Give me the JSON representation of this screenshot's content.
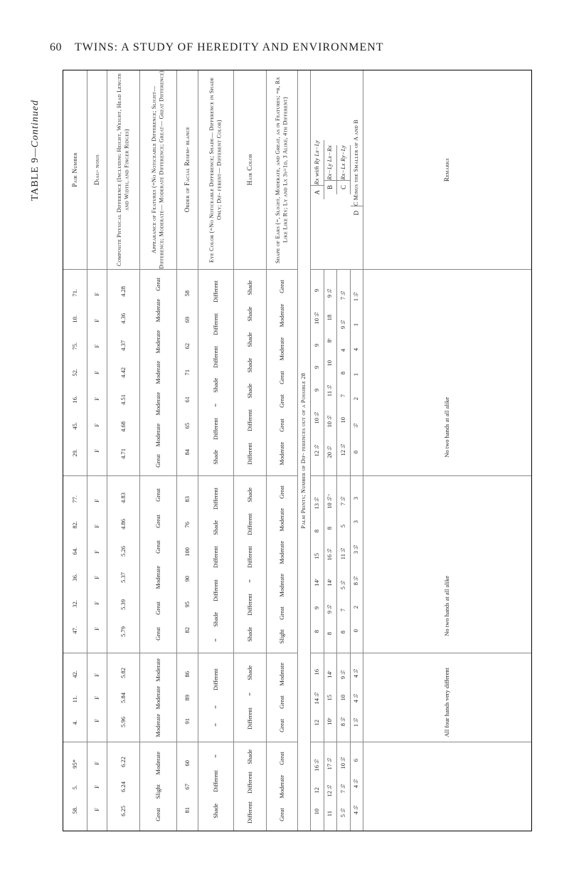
{
  "page_number": "60",
  "page_title": "TWINS: A STUDY OF HEREDITY AND ENVIRONMENT",
  "table_label_1": "TABLE 9",
  "table_label_2": "—Continued",
  "columns": {
    "remarks": {
      "header": "Remarks",
      "rows": {
        "g1": [
          "",
          "",
          "",
          "",
          "",
          "",
          "No two hands at all alike"
        ],
        "g2": [
          "",
          "",
          "",
          "",
          "",
          "No two hands at all alike"
        ],
        "g3": [
          "",
          "",
          "All four hands very different"
        ],
        "g4": [
          "",
          "",
          ""
        ]
      }
    },
    "palm": {
      "header_main": "Palm Prints; Number of Dif-\nferences out of a Possible 28",
      "sub_headers": {
        "D": {
          "label": "D",
          "formula": "C Minus the Smaller of A and B"
        },
        "C": {
          "label": "C",
          "formula": "Rx−Lx\nRy−Ly"
        },
        "B": {
          "label": "B",
          "formula": "Rx−Ly\nLx−Rx"
        },
        "A": {
          "label": "A",
          "formula": "Rx with Ry\nLx−Ly"
        }
      },
      "A": {
        "g1": [
          "9",
          "10½",
          "9",
          "9",
          "9",
          "10½",
          "12½"
        ],
        "g2": [
          "13½",
          "8",
          "15",
          "14ᶜ",
          "9",
          "8"
        ],
        "g3": [
          "16",
          "14½",
          "12"
        ],
        "g4": [
          "16½",
          "12",
          "10"
        ]
      },
      "B": {
        "g1": [
          "9½",
          "18",
          "8ᶜ",
          "10",
          "11½",
          "10½",
          "20½"
        ],
        "g2": [
          "10½ᶜ",
          "8",
          "16½",
          "14ᶜ",
          "9½",
          "8"
        ],
        "g3": [
          "14ᶜ",
          "15",
          "10ᶜ"
        ],
        "g4": [
          "17½",
          "12½",
          "11"
        ]
      },
      "Cc": {
        "g1": [
          "7½",
          "9½",
          "4",
          "8",
          "7",
          "10",
          "12½"
        ],
        "g2": [
          "7½",
          "5",
          "11½",
          "5½",
          "7",
          "8"
        ],
        "g3": [
          "9½",
          "10",
          "8½"
        ],
        "g4": [
          "10½",
          "7½",
          "5½"
        ]
      },
      "Dc": {
        "g1": [
          "1½",
          "1",
          "4",
          "1",
          "2",
          "½",
          "0"
        ],
        "g2": [
          "3",
          "3",
          "3½",
          "8½",
          "2",
          "0"
        ],
        "g3": [
          "4½",
          "4½",
          "1½"
        ],
        "g4": [
          "6",
          "4½",
          "4½"
        ]
      }
    },
    "shape": {
      "header": "Shape of\nEars (=,\nSlight,\nModerate,\nand Great,\nas in\nFeatures;\n=r, Rx Like\nLike Ry;\nLy and Lx\n3s=1d, 3\nAlike, 4th\nDifferent)",
      "rows": {
        "g1": [
          "Great",
          "Moderate",
          "Moderate",
          "Great",
          "Great",
          "Great",
          "Moderate"
        ],
        "g2": [
          "Great",
          "Moderate",
          "Moderate",
          "Moderate",
          "Great",
          "Slight"
        ],
        "g3": [
          "Moderate",
          "Great",
          "Great"
        ],
        "g4": [
          "Great",
          "Moderate",
          "Great"
        ]
      }
    },
    "hair": {
      "header": "Hair\nColor",
      "rows": {
        "g1": [
          "Shade",
          "Shade",
          "Shade",
          "Shade",
          "Shade",
          "Different",
          "Different"
        ],
        "g2": [
          "Shade",
          "Different",
          "Different",
          "=",
          "Different",
          "Shade"
        ],
        "g3": [
          "Shade",
          "=",
          "Different"
        ],
        "g4": [
          "Shade",
          "Different",
          "Different"
        ]
      }
    },
    "eye": {
      "header": "Eye Color\n(=No\nNoticeable\nDifference;\nShade—\nDifference\nin Shade\nOnly; Dif-\nferent—\nDifferent\nColor)",
      "rows": {
        "g1": [
          "Different",
          "Different",
          "Different",
          "Shade",
          "=",
          "Different",
          "Shade"
        ],
        "g2": [
          "Different",
          "Shade",
          "Different",
          "Different",
          "Shade",
          "="
        ],
        "g3": [
          "Different",
          "=",
          "="
        ],
        "g4": [
          "=",
          "Different",
          "Shade"
        ]
      }
    },
    "order": {
      "header": "Order\nof\nFacial\nResem-\nblance",
      "rows": {
        "g1": [
          "58",
          "69",
          "62",
          "71",
          "61",
          "65",
          "84"
        ],
        "g2": [
          "83",
          "76",
          "100",
          "90",
          "95",
          "82"
        ],
        "g3": [
          "86",
          "89",
          "91"
        ],
        "g4": [
          "60",
          "67",
          "81"
        ]
      }
    },
    "appear": {
      "header": "Appearance\nof Features\n(=No\nNoticeable\nDifference;\nSlight—\nDifference;\nModerate—\nModerate\nDifference;\nGreat—\nGreat\nDifference)",
      "rows": {
        "g1": [
          "Great",
          "Moderate",
          "Moderate",
          "Moderate",
          "Moderate",
          "Moderate",
          "Great"
        ],
        "g2": [
          "Great",
          "Great",
          "Great",
          "Moderate",
          "Great",
          "Great"
        ],
        "g3": [
          "Moderate",
          "Moderate",
          "Moderate"
        ],
        "g4": [
          "Moderate",
          "Slight",
          "Great"
        ]
      }
    },
    "compos": {
      "header": "Composite\nPhysical\nDifference\n(Including\nHeight,\nWeight,\nHead\nLength and\nWidth, and\nFinger\nRidges)",
      "rows": {
        "g1": [
          "4.28",
          "4.36",
          "4.37",
          "4.42",
          "4.51",
          "4.68",
          "4.71"
        ],
        "g2": [
          "4.83",
          "4.86",
          "5.26",
          "5.37",
          "5.39",
          "5.79"
        ],
        "g3": [
          "5.82",
          "5.84",
          "5.96"
        ],
        "g4": [
          "6.22",
          "6.24",
          "6.25"
        ]
      }
    },
    "diag": {
      "header": "Diag-\nnosis",
      "rows": {
        "g1": [
          "F",
          "F",
          "F",
          "F",
          "F",
          "F",
          "F"
        ],
        "g2": [
          "F",
          "F",
          "F",
          "F",
          "F",
          "F"
        ],
        "g3": [
          "F",
          "F",
          "F"
        ],
        "g4": [
          "F",
          "F",
          "F"
        ]
      }
    },
    "pair": {
      "header": "Pair\nNumber",
      "rows": {
        "g1": [
          "71.",
          "10.",
          "75.",
          "52.",
          "16.",
          "45.",
          "29."
        ],
        "g2": [
          "77.",
          "82.",
          "64.",
          "36.",
          "32.",
          "47."
        ],
        "g3": [
          "42.",
          "11.",
          "4."
        ],
        "g4": [
          "95*",
          "5.",
          "58."
        ]
      }
    }
  }
}
